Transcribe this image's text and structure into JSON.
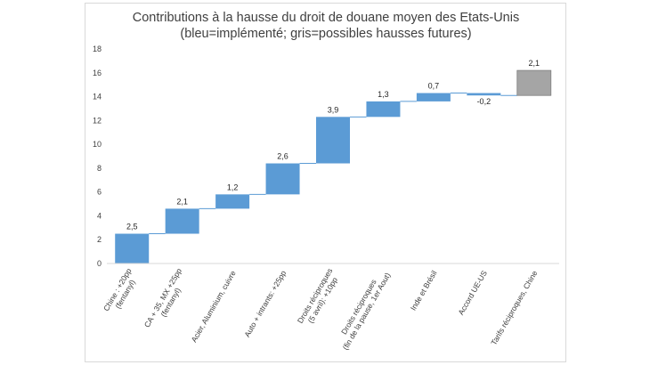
{
  "chart_data": {
    "type": "bar",
    "subtype": "waterfall",
    "title": "Contributions à la hausse du droit de douane moyen des Etats-Unis",
    "subtitle": "(bleu=implémenté; gris=possibles hausses futures)",
    "xlabel": "",
    "ylabel": "",
    "ylim": [
      0,
      18
    ],
    "yticks": [
      "0",
      "2",
      "4",
      "6",
      "8",
      "10",
      "12",
      "14",
      "16",
      "18"
    ],
    "grid": false,
    "legend": "none",
    "categories": [
      [
        "Chine : +20pp",
        "(fentanyl)"
      ],
      [
        "CA + 35, MX +25pp",
        "(fentanyl)"
      ],
      [
        "Acier, Aluminium, cuivre"
      ],
      [
        "Auto + intrants: +25pp"
      ],
      [
        "Droits réciproques",
        "(5 avril): +10pp"
      ],
      [
        "Droits réciproques",
        "(fin de la pause, 1er Aout)"
      ],
      [
        "Inde et Brésil"
      ],
      [
        "Accord UE-US"
      ],
      [
        "Tarifs réciproques, Chine"
      ]
    ],
    "bars": [
      {
        "start": 0,
        "end": 2.5,
        "label": "2,5",
        "status": "implemented"
      },
      {
        "start": 2.5,
        "end": 4.6,
        "label": "2,1",
        "status": "implemented"
      },
      {
        "start": 4.6,
        "end": 5.8,
        "label": "1,2",
        "status": "implemented"
      },
      {
        "start": 5.8,
        "end": 8.4,
        "label": "2,6",
        "status": "implemented"
      },
      {
        "start": 8.4,
        "end": 12.3,
        "label": "3,9",
        "status": "implemented"
      },
      {
        "start": 12.3,
        "end": 13.6,
        "label": "1,3",
        "status": "implemented"
      },
      {
        "start": 13.6,
        "end": 14.3,
        "label": "0,7",
        "status": "implemented"
      },
      {
        "start": 14.3,
        "end": 14.1,
        "label": "-0,2",
        "status": "implemented"
      },
      {
        "start": 14.1,
        "end": 16.2,
        "label": "2,1",
        "status": "possible"
      }
    ],
    "colors": {
      "implemented": "#5b9bd5",
      "possible": "#a5a5a5",
      "possible_border": "#7f7f7f",
      "connector": "#5b9bd5",
      "axis": "#d9d9d9"
    }
  }
}
